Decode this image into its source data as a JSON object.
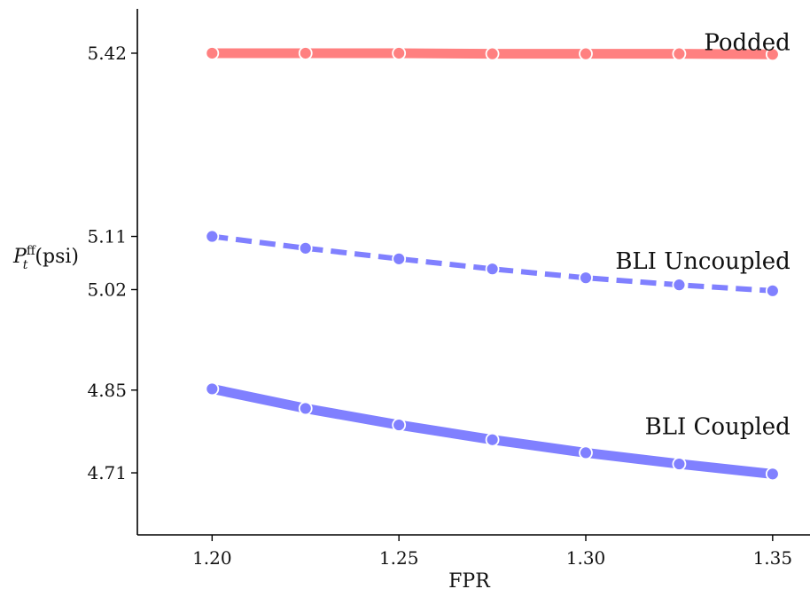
{
  "chart_data": {
    "type": "line",
    "xlabel": "FPR",
    "ylabel_main": "P",
    "ylabel_sub": "t",
    "ylabel_sup": "ff",
    "ylabel_unit": "(psi)",
    "x": [
      1.2,
      1.225,
      1.25,
      1.275,
      1.3,
      1.325,
      1.35
    ],
    "x_ticks": [
      1.2,
      1.25,
      1.3,
      1.35
    ],
    "x_tick_labels": [
      "1.20",
      "1.25",
      "1.30",
      "1.35"
    ],
    "y_ticks": [
      4.71,
      4.85,
      5.02,
      5.11,
      5.42
    ],
    "y_tick_labels": [
      "4.71",
      "4.85",
      "5.02",
      "5.11",
      "5.42"
    ],
    "xlim": [
      1.18,
      1.36
    ],
    "ylim": [
      4.605,
      5.495
    ],
    "grid": false,
    "series": [
      {
        "name": "Podded",
        "values": [
          5.42,
          5.42,
          5.42,
          5.419,
          5.419,
          5.419,
          5.418
        ],
        "color": "#ff8080",
        "style": "solid",
        "label_anchor_x": 1.35,
        "label_anchor_y": 5.425
      },
      {
        "name": "BLI Uncoupled",
        "values": [
          5.11,
          5.09,
          5.072,
          5.055,
          5.04,
          5.028,
          5.018
        ],
        "color": "#8080ff",
        "style": "dashed",
        "label_anchor_x": 1.35,
        "label_anchor_y": 5.055
      },
      {
        "name": "BLI Coupled",
        "values": [
          4.852,
          4.819,
          4.791,
          4.766,
          4.744,
          4.725,
          4.708
        ],
        "color": "#8080ff",
        "style": "solid",
        "label_anchor_x": 1.35,
        "label_anchor_y": 4.775
      }
    ]
  }
}
